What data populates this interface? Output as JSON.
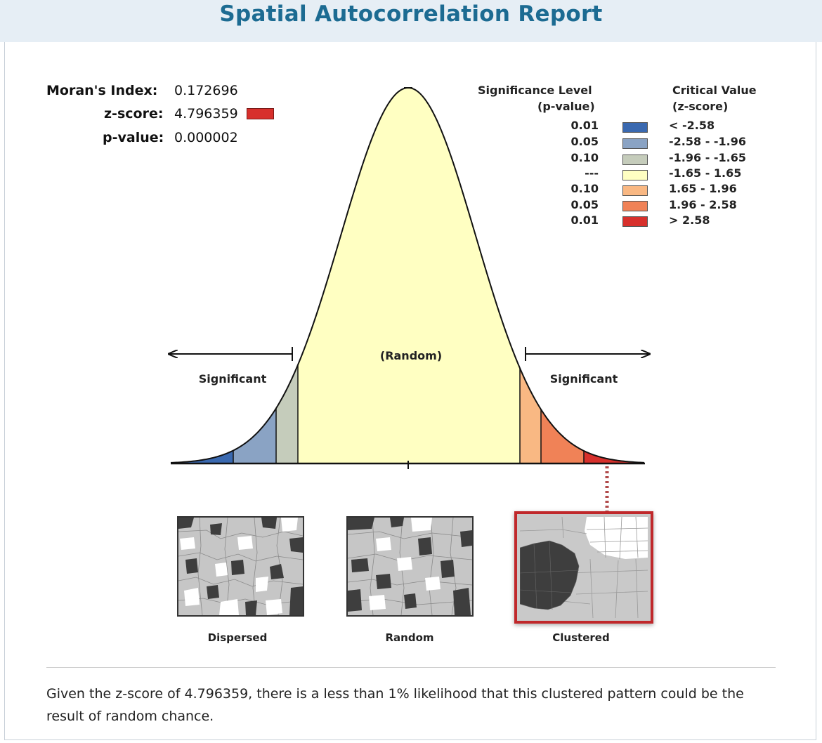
{
  "report": {
    "title": "Spatial Autocorrelation Report"
  },
  "stats": {
    "morans_label": "Moran's Index:",
    "morans_value": "0.172696",
    "zscore_label": "z-score:",
    "zscore_value": "4.796359",
    "pvalue_label": "p-value:",
    "pvalue_value": "0.000002",
    "zscore_badge_color": "#d7302c"
  },
  "legend": {
    "significance_header_1": "Significance Level",
    "significance_header_2": "(p-value)",
    "critical_header_1": "Critical Value",
    "critical_header_2": "(z-score)",
    "rows": [
      {
        "p": "0.01",
        "z": "< -2.58",
        "color": "#3a69b0"
      },
      {
        "p": "0.05",
        "z": "-2.58 - -1.96",
        "color": "#8aa3c4"
      },
      {
        "p": "0.10",
        "z": "-1.96 - -1.65",
        "color": "#c5ccbb"
      },
      {
        "p": "---",
        "z": "-1.65 - 1.65",
        "color": "#ffffc2"
      },
      {
        "p": "0.10",
        "z": "1.65 - 1.96",
        "color": "#f9b883"
      },
      {
        "p": "0.05",
        "z": "1.96 - 2.58",
        "color": "#f08257"
      },
      {
        "p": "0.01",
        "z": "> 2.58",
        "color": "#d7302c"
      }
    ]
  },
  "curve": {
    "left_label": "Significant",
    "center_label": "(Random)",
    "right_label": "Significant"
  },
  "maps": {
    "dispersed_label": "Dispersed",
    "random_label": "Random",
    "clustered_label": "Clustered",
    "highlight_color": "#c0282b"
  },
  "summary": {
    "text": "Given the z-score of 4.796359, there is a less than 1% likelihood that this clustered pattern could be the result of random chance."
  }
}
